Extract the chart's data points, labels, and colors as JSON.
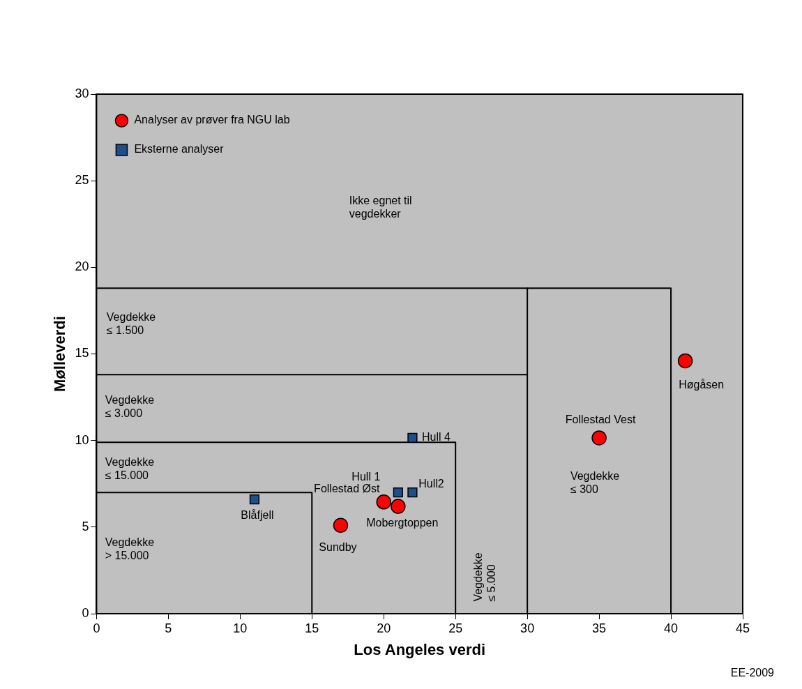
{
  "chart_data": {
    "type": "scatter",
    "xlabel": "Los Angeles verdi",
    "ylabel": "Mølleverdi",
    "xlim": [
      0,
      45
    ],
    "xticks": [
      0,
      5,
      10,
      15,
      20,
      25,
      30,
      35,
      40,
      45
    ],
    "ylim": [
      0,
      30
    ],
    "yticks": [
      0,
      5,
      10,
      15,
      20,
      25,
      30
    ],
    "legend": "top left",
    "series": [
      {
        "name": "Analyser av prøver fra NGU lab",
        "color": "#ff0000",
        "marker": "circle",
        "x": [
          17,
          20,
          21,
          35,
          41
        ],
        "values": [
          5.1,
          6.45,
          6.2,
          10.15,
          14.6
        ],
        "value_labels": [
          "Sundby",
          "Follestad Øst",
          "Mobergtoppen",
          "Follestad Vest",
          "Høgåsen"
        ]
      },
      {
        "name": "Eksterne analyser",
        "color": "#1f4e8c",
        "marker": "square",
        "x": [
          11,
          21,
          22,
          22
        ],
        "values": [
          6.6,
          7,
          7,
          10.15
        ],
        "value_labels": [
          "Blåfjell",
          "Hull 1",
          "Hull2",
          "Hull 4"
        ]
      },
      {
        "type": "line",
        "color": "#000000",
        "marker": "none",
        "x": [
          0,
          40,
          40
        ],
        "values": [
          18.8,
          18.8,
          0
        ]
      },
      {
        "type": "line",
        "color": "#000000",
        "marker": "none",
        "x": [
          0,
          30
        ],
        "values": [
          13.8,
          13.8
        ]
      },
      {
        "type": "line",
        "color": "#000000",
        "marker": "none",
        "x": [
          30,
          30
        ],
        "values": [
          18.8,
          0
        ]
      },
      {
        "type": "line",
        "color": "#000000",
        "marker": "none",
        "x": [
          0,
          25,
          25
        ],
        "values": [
          9.9,
          9.9,
          0
        ]
      },
      {
        "type": "line",
        "color": "#000000",
        "marker": "none",
        "x": [
          0,
          15,
          15
        ],
        "values": [
          7,
          7,
          0
        ]
      }
    ],
    "annotations": [
      "Ikke egnet til\nvegdekker",
      "Vegdekke\n≤ 1.500",
      "Vegdekke\n≤ 3.000",
      "Vegdekke\n≤ 15.000",
      "Vegdekke\n> 15.000",
      "Vegdekke\n≤ 5.000",
      "Vegdekke\n≤ 300",
      "EE-2009"
    ]
  }
}
